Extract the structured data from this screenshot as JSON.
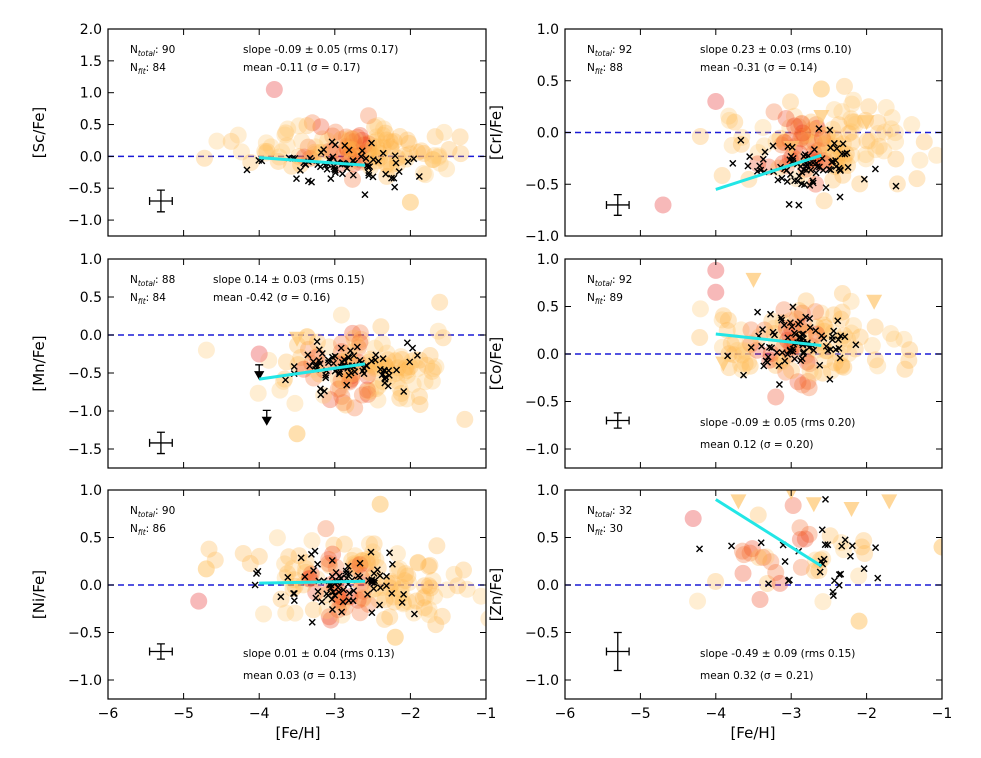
{
  "figure": {
    "xlabel": "[Fe/H]"
  },
  "chart_data": [
    {
      "type": "scatter",
      "id": "sc",
      "ylabel": "[Sc/Fe]",
      "xlim": [
        -6,
        -1
      ],
      "ylim": [
        -1.25,
        2.0
      ],
      "yticks": [
        -1.0,
        -0.5,
        0.0,
        0.5,
        1.0,
        1.5,
        2.0
      ],
      "xticks": [
        -6,
        -5,
        -4,
        -3,
        -2,
        -1
      ],
      "show_xticklabels": false,
      "n_total": "90",
      "n_fit": "84",
      "slope_text": "slope -0.09 ± 0.05 (rms 0.17)",
      "mean_text": "mean -0.11 (σ = 0.17)",
      "stats_pos": "top",
      "fit": {
        "x": [
          -4.0,
          -2.6
        ],
        "y": [
          -0.02,
          -0.14
        ]
      },
      "error_bar": {
        "x": -5.3,
        "y": -0.7,
        "xerr": 0.15,
        "yerr": 0.17
      },
      "cloud": {
        "center": [
          -2.8,
          0.12
        ],
        "spread": [
          0.7,
          0.2
        ],
        "n": 130,
        "red_center": [
          -3.0,
          0.15
        ]
      },
      "crosses": {
        "center": [
          -2.9,
          -0.12
        ],
        "spread": [
          0.45,
          0.17
        ],
        "n": 70
      },
      "extra_points": [
        [
          -3.8,
          1.05,
          "#f08080"
        ],
        [
          -2.0,
          -0.72,
          "#ffc66e"
        ],
        [
          -1.7,
          -0.05,
          "#ffc66e"
        ]
      ],
      "upper_limits": []
    },
    {
      "type": "scatter",
      "id": "cr",
      "ylabel": "[CrI/Fe]",
      "xlim": [
        -6,
        -1
      ],
      "ylim": [
        -1.0,
        1.0
      ],
      "yticks": [
        -1.0,
        -0.5,
        0.0,
        0.5,
        1.0
      ],
      "xticks": [
        -6,
        -5,
        -4,
        -3,
        -2,
        -1
      ],
      "show_xticklabels": false,
      "n_total": "92",
      "n_fit": "88",
      "slope_text": "slope 0.23 ± 0.03 (rms 0.10)",
      "mean_text": "mean -0.31 (σ = 0.14)",
      "stats_pos": "top",
      "fit": {
        "x": [
          -4.0,
          -2.6
        ],
        "y": [
          -0.55,
          -0.22
        ]
      },
      "error_bar": {
        "x": -5.3,
        "y": -0.7,
        "xerr": 0.15,
        "yerr": 0.1
      },
      "cloud": {
        "center": [
          -2.5,
          -0.1
        ],
        "spread": [
          0.7,
          0.2
        ],
        "n": 130,
        "red_center": [
          -3.0,
          -0.2
        ]
      },
      "crosses": {
        "center": [
          -2.8,
          -0.3
        ],
        "spread": [
          0.4,
          0.15
        ],
        "n": 80
      },
      "extra_points": [
        [
          -4.0,
          0.3,
          "#f08080"
        ],
        [
          -4.7,
          -0.7,
          "#f08080"
        ],
        [
          -2.6,
          0.42,
          "#ffc66e"
        ]
      ],
      "upper_limits": [
        [
          -3.0,
          -0.15
        ],
        [
          -2.6,
          0.15
        ],
        [
          -2.0,
          0.1
        ]
      ]
    },
    {
      "type": "scatter",
      "id": "mn",
      "ylabel": "[Mn/Fe]",
      "xlim": [
        -6,
        -1
      ],
      "ylim": [
        -1.75,
        1.0
      ],
      "yticks": [
        -1.5,
        -1.0,
        -0.5,
        0.0,
        0.5,
        1.0
      ],
      "xticks": [
        -6,
        -5,
        -4,
        -3,
        -2,
        -1
      ],
      "show_xticklabels": false,
      "n_total": "88",
      "n_fit": "84",
      "slope_text": "slope 0.14 ± 0.03 (rms 0.15)",
      "mean_text": "mean -0.42 (σ = 0.16)",
      "stats_pos": "top",
      "fit": {
        "x": [
          -4.0,
          -2.6
        ],
        "y": [
          -0.58,
          -0.38
        ]
      },
      "error_bar": {
        "x": -5.3,
        "y": -1.42,
        "xerr": 0.15,
        "yerr": 0.14
      },
      "cloud": {
        "center": [
          -2.6,
          -0.45
        ],
        "spread": [
          0.65,
          0.25
        ],
        "n": 120,
        "red_center": [
          -3.0,
          -0.5
        ]
      },
      "crosses": {
        "center": [
          -2.8,
          -0.4
        ],
        "spread": [
          0.4,
          0.15
        ],
        "n": 75
      },
      "extra_points": [
        [
          -4.0,
          -0.25,
          "#f08080"
        ],
        [
          -3.5,
          -1.3,
          "#ffc66e"
        ]
      ],
      "upper_limits": [
        [
          -3.5,
          -0.05
        ]
      ],
      "arrows": [
        [
          -4.0,
          -0.55
        ],
        [
          -3.9,
          -1.15
        ]
      ]
    },
    {
      "type": "scatter",
      "id": "co",
      "ylabel": "[Co/Fe]",
      "xlim": [
        -6,
        -1
      ],
      "ylim": [
        -1.2,
        1.0
      ],
      "yticks": [
        -1.0,
        -0.5,
        0.0,
        0.5,
        1.0
      ],
      "xticks": [
        -6,
        -5,
        -4,
        -3,
        -2,
        -1
      ],
      "show_xticklabels": false,
      "n_total": "92",
      "n_fit": "89",
      "slope_text": "slope -0.09 ± 0.05 (rms 0.20)",
      "mean_text": "mean 0.12 (σ = 0.20)",
      "stats_pos": "bottom",
      "fit": {
        "x": [
          -4.0,
          -2.6
        ],
        "y": [
          0.21,
          0.09
        ]
      },
      "error_bar": {
        "x": -5.3,
        "y": -0.7,
        "xerr": 0.15,
        "yerr": 0.08
      },
      "cloud": {
        "center": [
          -2.9,
          0.12
        ],
        "spread": [
          0.6,
          0.2
        ],
        "n": 120,
        "red_center": [
          -3.1,
          0.15
        ]
      },
      "crosses": {
        "center": [
          -2.9,
          0.1
        ],
        "spread": [
          0.4,
          0.18
        ],
        "n": 80
      },
      "extra_points": [
        [
          -4.0,
          0.88,
          "#f08080"
        ],
        [
          -4.0,
          0.65,
          "#f08080"
        ]
      ],
      "upper_limits": [
        [
          -3.5,
          0.78
        ],
        [
          -1.9,
          0.55
        ],
        [
          -3.9,
          -0.1
        ]
      ]
    },
    {
      "type": "scatter",
      "id": "ni",
      "ylabel": "[Ni/Fe]",
      "xlim": [
        -6,
        -1
      ],
      "ylim": [
        -1.2,
        1.0
      ],
      "yticks": [
        -1.0,
        -0.5,
        0.0,
        0.5,
        1.0
      ],
      "xticks": [
        -6,
        -5,
        -4,
        -3,
        -2,
        -1
      ],
      "show_xticklabels": true,
      "n_total": "90",
      "n_fit": "86",
      "slope_text": "slope 0.01 ± 0.04 (rms 0.13)",
      "mean_text": "mean 0.03 (σ = 0.13)",
      "stats_pos": "bottom",
      "fit": {
        "x": [
          -4.0,
          -2.6
        ],
        "y": [
          0.02,
          0.04
        ]
      },
      "error_bar": {
        "x": -5.3,
        "y": -0.7,
        "xerr": 0.15,
        "yerr": 0.08
      },
      "cloud": {
        "center": [
          -2.7,
          0.05
        ],
        "spread": [
          0.7,
          0.2
        ],
        "n": 140,
        "red_center": [
          -3.0,
          0.05
        ]
      },
      "crosses": {
        "center": [
          -2.9,
          0.0
        ],
        "spread": [
          0.45,
          0.15
        ],
        "n": 80
      },
      "extra_points": [
        [
          -4.8,
          -0.17,
          "#f08080"
        ],
        [
          -4.7,
          0.17,
          "#ffc66e"
        ],
        [
          -2.4,
          0.85,
          "#ffc66e"
        ],
        [
          -2.2,
          -0.55,
          "#ffc66e"
        ]
      ],
      "upper_limits": []
    },
    {
      "type": "scatter",
      "id": "zn",
      "ylabel": "[Zn/Fe]",
      "xlim": [
        -6,
        -1
      ],
      "ylim": [
        -1.2,
        1.0
      ],
      "yticks": [
        -1.0,
        -0.5,
        0.0,
        0.5,
        1.0
      ],
      "xticks": [
        -6,
        -5,
        -4,
        -3,
        -2,
        -1
      ],
      "show_xticklabels": true,
      "n_total": "32",
      "n_fit": "30",
      "slope_text": "slope -0.49 ± 0.09 (rms 0.15)",
      "mean_text": "mean 0.32 (σ = 0.21)",
      "stats_pos": "bottom",
      "fit": {
        "x": [
          -4.0,
          -2.6
        ],
        "y": [
          0.9,
          0.2
        ]
      },
      "error_bar": {
        "x": -5.3,
        "y": -0.7,
        "xerr": 0.15,
        "yerr": 0.2
      },
      "cloud": {
        "center": [
          -2.7,
          0.3
        ],
        "spread": [
          0.6,
          0.2
        ],
        "n": 35,
        "red_center": [
          -3.2,
          0.35
        ]
      },
      "crosses": {
        "center": [
          -2.8,
          0.25
        ],
        "spread": [
          0.5,
          0.25
        ],
        "n": 30
      },
      "extra_points": [
        [
          -4.3,
          0.7,
          "#f08080"
        ],
        [
          -2.1,
          -0.38,
          "#ffc66e"
        ],
        [
          -1.0,
          0.4,
          "#ffc66e"
        ]
      ],
      "upper_limits": [
        [
          -3.7,
          0.88
        ],
        [
          -3.0,
          0.98
        ],
        [
          -2.7,
          0.85
        ],
        [
          -2.2,
          0.8
        ],
        [
          -1.7,
          0.88
        ]
      ]
    }
  ]
}
